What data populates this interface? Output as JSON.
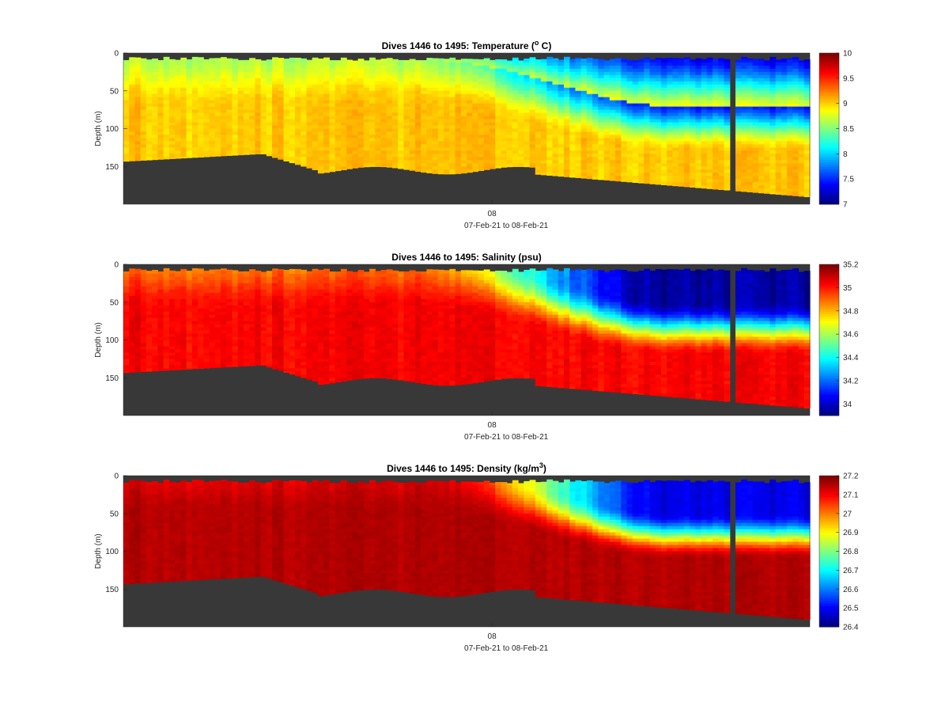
{
  "colors": {
    "land": "#383838",
    "axis": "#262626",
    "frame": "#000000"
  },
  "chart_data": [
    {
      "type": "heatmap",
      "title": "Dives 1446 to 1495: Temperature (",
      "title_super": "o",
      "title_tail": " C)",
      "ylabel": "Depth (m)",
      "xlabel": "07-Feb-21 to 08-Feb-21",
      "x_tick_labels": [
        "08"
      ],
      "y_tick_labels": [
        "0",
        "50",
        "100",
        "150"
      ],
      "y_ticks": [
        0,
        50,
        100,
        150
      ],
      "ylim": [
        0,
        200
      ],
      "dives": [
        1446,
        1495
      ],
      "colorbar": {
        "range": [
          7,
          10
        ],
        "ticks": [
          7,
          7.5,
          8,
          8.5,
          9,
          9.5,
          10
        ],
        "tick_labels": [
          "7",
          "7.5",
          "8",
          "8.5",
          "9",
          "9.5",
          "10"
        ]
      },
      "cmap": "jet",
      "field": "temperature"
    },
    {
      "type": "heatmap",
      "title": "Dives 1446 to 1495: Salinity (psu)",
      "title_super": "",
      "title_tail": "",
      "ylabel": "Depth (m)",
      "xlabel": "07-Feb-21 to 08-Feb-21",
      "x_tick_labels": [
        "08"
      ],
      "y_tick_labels": [
        "0",
        "50",
        "100",
        "150"
      ],
      "y_ticks": [
        0,
        50,
        100,
        150
      ],
      "ylim": [
        0,
        200
      ],
      "dives": [
        1446,
        1495
      ],
      "colorbar": {
        "range": [
          33.9,
          35.2
        ],
        "ticks": [
          34,
          34.2,
          34.4,
          34.6,
          34.8,
          35,
          35.2
        ],
        "tick_labels": [
          "34",
          "34.2",
          "34.4",
          "34.6",
          "34.8",
          "35",
          "35.2"
        ]
      },
      "cmap": "jet",
      "field": "salinity"
    },
    {
      "type": "heatmap",
      "title": "Dives 1446 to 1495: Density (kg/m",
      "title_super": "3",
      "title_tail": ")",
      "ylabel": "Depth (m)",
      "xlabel": "07-Feb-21 to 08-Feb-21",
      "x_tick_labels": [
        "08"
      ],
      "y_tick_labels": [
        "0",
        "50",
        "100",
        "150"
      ],
      "y_ticks": [
        0,
        50,
        100,
        150
      ],
      "ylim": [
        0,
        200
      ],
      "dives": [
        1446,
        1495
      ],
      "colorbar": {
        "range": [
          26.4,
          27.2
        ],
        "ticks": [
          26.4,
          26.5,
          26.6,
          26.7,
          26.8,
          26.9,
          27,
          27.1,
          27.2
        ],
        "tick_labels": [
          "26.4",
          "26.5",
          "26.6",
          "26.7",
          "26.8",
          "26.9",
          "27",
          "27.1",
          "27.2"
        ]
      },
      "cmap": "jet",
      "field": "density"
    }
  ]
}
